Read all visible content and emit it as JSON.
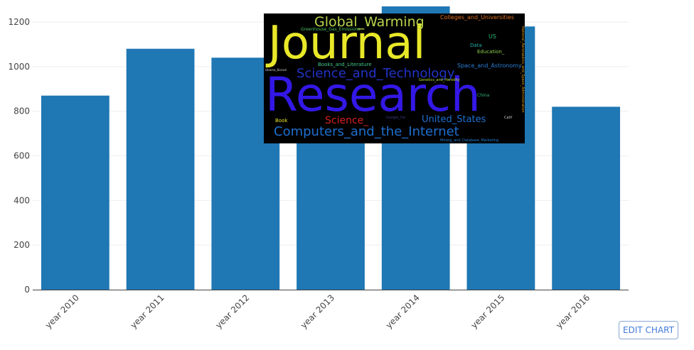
{
  "chart_data": {
    "type": "bar",
    "categories": [
      "year 2010",
      "year 2011",
      "year 2012",
      "year 2013",
      "year 2014",
      "year 2015",
      "year 2016"
    ],
    "values": [
      870,
      1080,
      1040,
      1060,
      1270,
      1180,
      820
    ],
    "ylim": [
      0,
      1200
    ],
    "yticks": [
      "0",
      "200",
      "400",
      "600",
      "800",
      "1000",
      "1200"
    ],
    "bar_color": "#1f77b4",
    "grid": true,
    "xlabel": "",
    "ylabel": "",
    "title": ""
  },
  "wordcloud": {
    "background": "#000000",
    "words": [
      {
        "text": "Journal",
        "color": "#e8e829"
      },
      {
        "text": "Research",
        "color": "#3318e6"
      },
      {
        "text": "Global_Warming",
        "color": "#b7d44c"
      },
      {
        "text": "Science_and_Technology",
        "color": "#2233c8"
      },
      {
        "text": "Computers_and_the_Internet",
        "color": "#1e6fd0"
      },
      {
        "text": "United_States",
        "color": "#1e6fd0"
      },
      {
        "text": "Science_",
        "color": "#d52121"
      },
      {
        "text": "Colleges_and_Universities",
        "color": "#e0701e"
      },
      {
        "text": "Greenhouse_Gas_Emissions",
        "color": "#4cc262"
      },
      {
        "text": "Books_and_Literature",
        "color": "#42c98a"
      },
      {
        "text": "Space_and_Astronomy",
        "color": "#2b7fd6"
      },
      {
        "text": "Data",
        "color": "#20b2aa"
      },
      {
        "text": "Education_",
        "color": "#8fd14f"
      },
      {
        "text": "US",
        "color": "#2bb673"
      },
      {
        "text": "Book",
        "color": "#e8e829"
      },
      {
        "text": "China",
        "color": "#35b779"
      },
      {
        "text": "Genetics_and_Heredity",
        "color": "#b5de2b"
      },
      {
        "text": "National_Aeronautics_and_Space_Administration",
        "color": "#e0a020"
      },
      {
        "text": "Mining_and_Database_Marketing",
        "color": "#1f7fd6"
      },
      {
        "text": "Obama_Barack",
        "color": "#cccccc"
      },
      {
        "text": "Calif",
        "color": "#cccccc"
      },
      {
        "text": "Google_Inc",
        "color": "#3a3a8a"
      }
    ]
  },
  "edit_button": {
    "label": "EDIT CHART"
  }
}
